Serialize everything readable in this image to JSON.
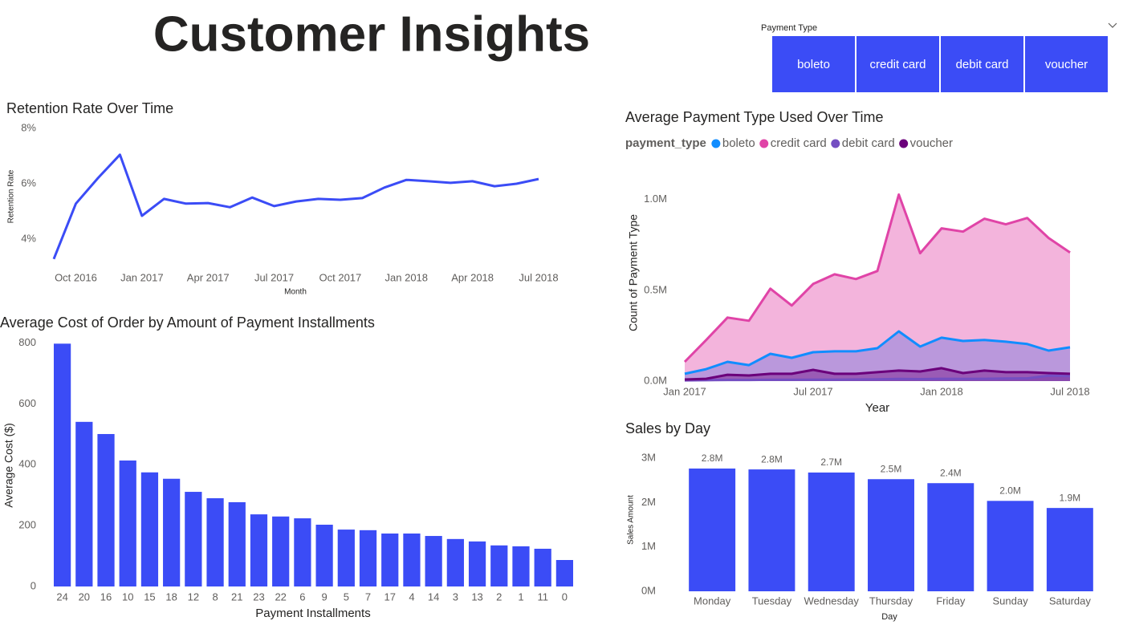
{
  "title": "Customer Insights",
  "slicer": {
    "title": "Payment Type",
    "options": [
      "boleto",
      "credit card",
      "debit card",
      "voucher"
    ]
  },
  "chart_data": [
    {
      "type": "line",
      "title": "Retention Rate Over Time",
      "x_label": "Month",
      "y_label": "Retention Rate",
      "color": "#3b4cf6",
      "x": [
        "2016-09",
        "2016-10",
        "2016-11",
        "2016-12",
        "2017-01",
        "2017-02",
        "2017-03",
        "2017-04",
        "2017-05",
        "2017-06",
        "2017-07",
        "2017-08",
        "2017-09",
        "2017-10",
        "2017-11",
        "2017-12",
        "2018-01",
        "2018-02",
        "2018-03",
        "2018-04",
        "2018-05",
        "2018-06",
        "2018-07"
      ],
      "values": [
        3.28,
        5.28,
        6.2,
        7.05,
        4.84,
        5.45,
        5.28,
        5.3,
        5.15,
        5.5,
        5.19,
        5.36,
        5.45,
        5.42,
        5.48,
        5.86,
        6.14,
        6.09,
        6.03,
        6.09,
        5.91,
        6.0,
        6.17
      ],
      "xticks": [
        {
          "value": "2016-10",
          "label": "Oct 2016"
        },
        {
          "value": "2017-01",
          "label": "Jan 2017"
        },
        {
          "value": "2017-04",
          "label": "Apr 2017"
        },
        {
          "value": "2017-07",
          "label": "Jul 2017"
        },
        {
          "value": "2017-10",
          "label": "Oct 2017"
        },
        {
          "value": "2018-01",
          "label": "Jan 2018"
        },
        {
          "value": "2018-04",
          "label": "Apr 2018"
        },
        {
          "value": "2018-07",
          "label": "Jul 2018"
        }
      ],
      "ylim": [
        3.1,
        8
      ],
      "yticks": [
        {
          "value": 4,
          "label": "4%"
        },
        {
          "value": 6,
          "label": "6%"
        },
        {
          "value": 8,
          "label": "8%"
        }
      ]
    },
    {
      "type": "bar",
      "title": "Average Cost of Order by Amount of Payment Installments",
      "x_label": "Payment Installments",
      "y_label": "Average Cost ($)",
      "color": "#3b4cf6",
      "categories": [
        "24",
        "20",
        "16",
        "10",
        "15",
        "18",
        "12",
        "8",
        "21",
        "23",
        "22",
        "6",
        "9",
        "5",
        "7",
        "17",
        "4",
        "14",
        "3",
        "13",
        "2",
        "1",
        "11",
        "0"
      ],
      "values": [
        798,
        541,
        501,
        414,
        375,
        354,
        311,
        290,
        277,
        237,
        230,
        224,
        203,
        187,
        185,
        174,
        174,
        166,
        156,
        148,
        135,
        132,
        124,
        87
      ],
      "ylim": [
        0,
        820
      ],
      "yticks": [
        0,
        200,
        400,
        600,
        800
      ]
    },
    {
      "type": "area",
      "title": "Average Payment Type Used Over Time",
      "x_label": "Year",
      "y_label": "Count of Payment Type",
      "legend_title": "payment_type",
      "x": [
        "2017-01",
        "2017-02",
        "2017-03",
        "2017-04",
        "2017-05",
        "2017-06",
        "2017-07",
        "2017-08",
        "2017-09",
        "2017-10",
        "2017-11",
        "2017-12",
        "2018-01",
        "2018-02",
        "2018-03",
        "2018-04",
        "2018-05",
        "2018-06",
        "2018-07"
      ],
      "series": [
        {
          "name": "boleto",
          "color": "#118dff",
          "values": [
            40000,
            66000,
            106000,
            88000,
            150000,
            128000,
            159000,
            164000,
            164000,
            181000,
            274000,
            190000,
            239000,
            221000,
            226000,
            217000,
            204000,
            168000,
            186000
          ]
        },
        {
          "name": "credit card",
          "color": "#e044a7",
          "values": [
            106000,
            226000,
            350000,
            332000,
            509000,
            416000,
            535000,
            588000,
            562000,
            606000,
            1027000,
            704000,
            841000,
            823000,
            894000,
            863000,
            898000,
            788000,
            708000
          ]
        },
        {
          "name": "debit card",
          "color": "#744ec2",
          "values": [
            4000,
            5000,
            6000,
            6000,
            7000,
            7000,
            8000,
            8000,
            9000,
            10000,
            12000,
            11000,
            13000,
            12000,
            13000,
            14000,
            15000,
            30000,
            28000
          ]
        },
        {
          "name": "voucher",
          "color": "#6b007b",
          "values": [
            9000,
            13000,
            35000,
            31000,
            40000,
            40000,
            62000,
            40000,
            40000,
            49000,
            58000,
            53000,
            71000,
            44000,
            58000,
            49000,
            49000,
            44000,
            40000
          ]
        }
      ],
      "xticks": [
        {
          "value": "2017-01",
          "label": "Jan 2017"
        },
        {
          "value": "2017-07",
          "label": "Jul 2017"
        },
        {
          "value": "2018-01",
          "label": "Jan 2018"
        },
        {
          "value": "2018-07",
          "label": "Jul 2018"
        }
      ],
      "ylim": [
        0,
        1100000
      ],
      "yticks": [
        {
          "value": 0,
          "label": "0.0M"
        },
        {
          "value": 500000,
          "label": "0.5M"
        },
        {
          "value": 1000000,
          "label": "1.0M"
        }
      ]
    },
    {
      "type": "bar",
      "title": "Sales by Day",
      "x_label": "Day",
      "y_label": "Sales Amount",
      "color": "#3b4cf6",
      "categories": [
        "Monday",
        "Tuesday",
        "Wednesday",
        "Thursday",
        "Friday",
        "Sunday",
        "Saturday"
      ],
      "values": [
        2770000,
        2750000,
        2680000,
        2530000,
        2440000,
        2040000,
        1880000
      ],
      "value_labels": [
        "2.8M",
        "2.8M",
        "2.7M",
        "2.5M",
        "2.4M",
        "2.0M",
        "1.9M"
      ],
      "ylim": [
        0,
        3150000
      ],
      "yticks": [
        {
          "value": 0,
          "label": "0M"
        },
        {
          "value": 1000000,
          "label": "1M"
        },
        {
          "value": 2000000,
          "label": "2M"
        },
        {
          "value": 3000000,
          "label": "3M"
        }
      ]
    }
  ]
}
